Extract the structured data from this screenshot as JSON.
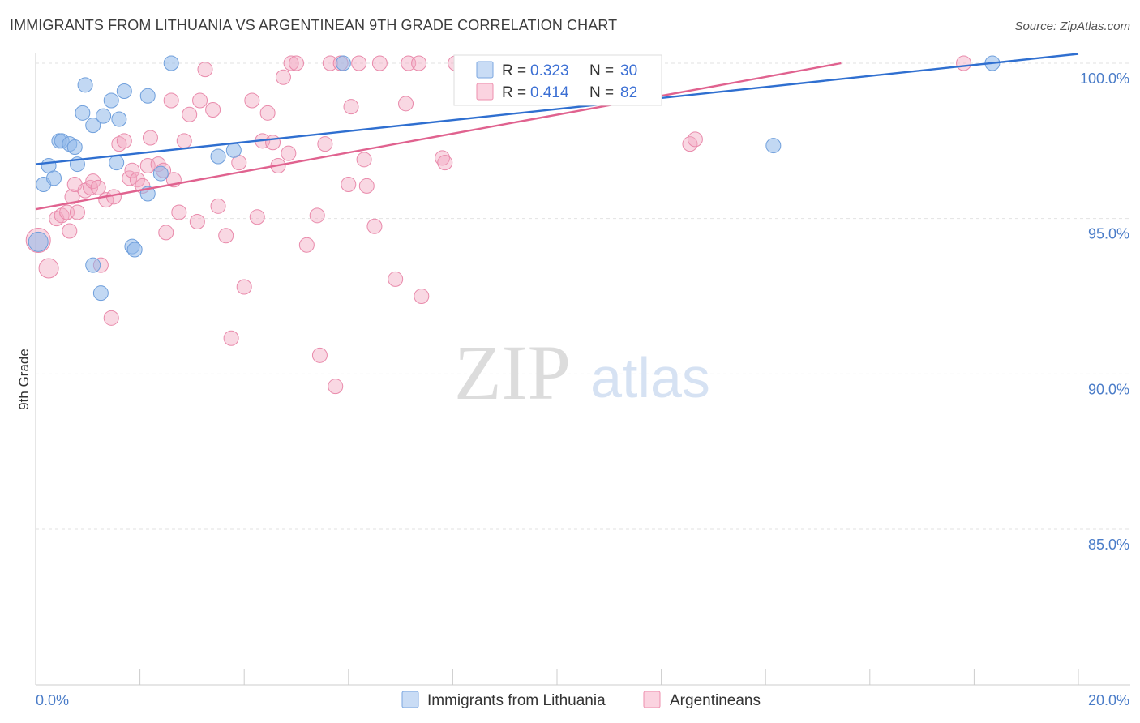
{
  "title": "IMMIGRANTS FROM LITHUANIA VS ARGENTINEAN 9TH GRADE CORRELATION CHART",
  "source": "Source: ZipAtlas.com",
  "watermark": {
    "zip": "ZIP",
    "atlas": "atlas"
  },
  "legend_stats": [
    {
      "r_label": "R =",
      "r_value": "0.323",
      "n_label": "N =",
      "n_value": "30",
      "color": "#a8c8f0",
      "border": "#7aa6e0"
    },
    {
      "r_label": "R =",
      "r_value": "0.414",
      "n_label": "N =",
      "n_value": "82",
      "color": "#f7b8cc",
      "border": "#ee8fae"
    }
  ],
  "colors": {
    "blue_point": "#8fb8ea",
    "blue_line": "#2f6fd0",
    "pink_point": "#f2a9c2",
    "pink_line": "#e0628f",
    "tick_text": "#4a7cc8",
    "grid": "#e2e2e2"
  },
  "chart_data": {
    "type": "scatter",
    "xlabel": "",
    "ylabel": "9th Grade",
    "xlim": [
      0,
      20
    ],
    "ylim": [
      80.5,
      100.6
    ],
    "x_ticks": [
      0,
      2,
      4,
      6,
      8,
      10,
      12,
      14,
      16,
      18,
      20
    ],
    "x_tick_labels": [
      "0.0%",
      "",
      "",
      "",
      "",
      "",
      "",
      "",
      "",
      "",
      "20.0%"
    ],
    "y_ticks": [
      85,
      90,
      95,
      100
    ],
    "y_tick_labels": [
      "85.0%",
      "90.0%",
      "95.0%",
      "100.0%"
    ],
    "grid": true,
    "legend": "bottom-center",
    "series": [
      {
        "name": "Immigrants from Lithuania",
        "color": "#8fb8ea",
        "trend": {
          "x0": 0,
          "y0": 96.75,
          "x1": 20,
          "y1": 100.3
        },
        "points": [
          [
            0.15,
            96.1
          ],
          [
            0.25,
            96.7
          ],
          [
            0.35,
            96.3
          ],
          [
            0.45,
            97.5
          ],
          [
            0.5,
            97.5
          ],
          [
            0.65,
            97.4
          ],
          [
            0.75,
            97.3
          ],
          [
            0.8,
            96.75
          ],
          [
            0.9,
            98.4
          ],
          [
            0.95,
            99.3
          ],
          [
            1.1,
            98.0
          ],
          [
            1.3,
            98.3
          ],
          [
            1.45,
            98.8
          ],
          [
            1.6,
            98.2
          ],
          [
            1.7,
            99.1
          ],
          [
            1.55,
            96.8
          ],
          [
            1.85,
            94.1
          ],
          [
            1.9,
            94.0
          ],
          [
            2.15,
            98.95
          ],
          [
            2.15,
            95.8
          ],
          [
            2.4,
            96.45
          ],
          [
            2.6,
            100.0
          ],
          [
            3.5,
            97.0
          ],
          [
            3.8,
            97.2
          ],
          [
            5.9,
            100.0
          ],
          [
            1.1,
            93.5
          ],
          [
            1.25,
            92.6
          ],
          [
            0.05,
            94.25
          ],
          [
            14.15,
            97.35
          ],
          [
            18.35,
            100.0
          ]
        ]
      },
      {
        "name": "Argentineans",
        "color": "#f2a9c2",
        "trend": {
          "x0": 0,
          "y0": 95.3,
          "x1": 15.45,
          "y1": 100.0
        },
        "points": [
          [
            0.05,
            94.3
          ],
          [
            0.25,
            93.4
          ],
          [
            0.4,
            95.0
          ],
          [
            0.5,
            95.1
          ],
          [
            0.6,
            95.2
          ],
          [
            0.65,
            94.6
          ],
          [
            0.7,
            95.7
          ],
          [
            0.75,
            96.1
          ],
          [
            0.8,
            95.2
          ],
          [
            0.95,
            95.9
          ],
          [
            1.05,
            96.0
          ],
          [
            1.1,
            96.2
          ],
          [
            1.2,
            96.0
          ],
          [
            1.25,
            93.5
          ],
          [
            1.35,
            95.6
          ],
          [
            1.45,
            91.8
          ],
          [
            1.5,
            95.7
          ],
          [
            1.6,
            97.4
          ],
          [
            1.7,
            97.5
          ],
          [
            1.8,
            96.3
          ],
          [
            1.85,
            96.55
          ],
          [
            1.95,
            96.25
          ],
          [
            2.05,
            96.05
          ],
          [
            2.15,
            96.7
          ],
          [
            2.2,
            97.6
          ],
          [
            2.35,
            96.75
          ],
          [
            2.45,
            96.55
          ],
          [
            2.5,
            94.55
          ],
          [
            2.6,
            98.8
          ],
          [
            2.65,
            96.25
          ],
          [
            2.75,
            95.2
          ],
          [
            2.85,
            97.5
          ],
          [
            2.95,
            98.35
          ],
          [
            3.1,
            94.9
          ],
          [
            3.15,
            98.8
          ],
          [
            3.25,
            99.8
          ],
          [
            3.4,
            98.5
          ],
          [
            3.5,
            95.4
          ],
          [
            3.65,
            94.45
          ],
          [
            3.75,
            91.15
          ],
          [
            3.9,
            96.8
          ],
          [
            4.0,
            92.8
          ],
          [
            4.15,
            98.8
          ],
          [
            4.25,
            95.05
          ],
          [
            4.35,
            97.5
          ],
          [
            4.45,
            98.4
          ],
          [
            4.55,
            97.45
          ],
          [
            4.65,
            96.7
          ],
          [
            4.75,
            99.55
          ],
          [
            4.85,
            97.1
          ],
          [
            4.9,
            100.0
          ],
          [
            5.0,
            100.0
          ],
          [
            5.2,
            94.15
          ],
          [
            5.4,
            95.1
          ],
          [
            5.45,
            90.6
          ],
          [
            5.55,
            97.4
          ],
          [
            5.65,
            100.0
          ],
          [
            5.85,
            100.0
          ],
          [
            5.75,
            89.6
          ],
          [
            6.0,
            96.1
          ],
          [
            6.05,
            98.6
          ],
          [
            6.2,
            100.0
          ],
          [
            6.3,
            96.9
          ],
          [
            6.35,
            96.05
          ],
          [
            6.5,
            94.75
          ],
          [
            6.6,
            100.0
          ],
          [
            6.9,
            93.05
          ],
          [
            7.1,
            98.7
          ],
          [
            7.15,
            100.0
          ],
          [
            7.35,
            100.0
          ],
          [
            7.4,
            92.5
          ],
          [
            7.8,
            96.95
          ],
          [
            7.85,
            96.8
          ],
          [
            8.05,
            100.0
          ],
          [
            8.3,
            100.0
          ],
          [
            8.65,
            100.0
          ],
          [
            9.05,
            100.0
          ],
          [
            9.35,
            98.9
          ],
          [
            12.55,
            97.4
          ],
          [
            12.65,
            97.55
          ],
          [
            17.8,
            100.0
          ],
          [
            9.5,
            100.0
          ]
        ]
      }
    ]
  }
}
